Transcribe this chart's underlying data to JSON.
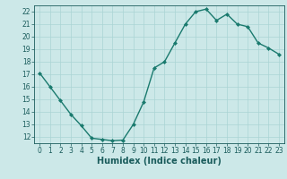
{
  "x": [
    0,
    1,
    2,
    3,
    4,
    5,
    6,
    7,
    8,
    9,
    10,
    11,
    12,
    13,
    14,
    15,
    16,
    17,
    18,
    19,
    20,
    21,
    22,
    23
  ],
  "y": [
    17.1,
    16.0,
    14.9,
    13.8,
    12.9,
    11.9,
    11.8,
    11.7,
    11.75,
    13.0,
    14.8,
    17.5,
    18.0,
    19.5,
    21.0,
    22.0,
    22.2,
    21.3,
    21.8,
    21.0,
    20.8,
    19.5,
    19.1,
    18.6
  ],
  "xlim": [
    -0.5,
    23.5
  ],
  "ylim": [
    11.5,
    22.5
  ],
  "yticks": [
    12,
    13,
    14,
    15,
    16,
    17,
    18,
    19,
    20,
    21,
    22
  ],
  "xticks": [
    0,
    1,
    2,
    3,
    4,
    5,
    6,
    7,
    8,
    9,
    10,
    11,
    12,
    13,
    14,
    15,
    16,
    17,
    18,
    19,
    20,
    21,
    22,
    23
  ],
  "xlabel": "Humidex (Indice chaleur)",
  "line_color": "#1a7a6e",
  "marker": "D",
  "marker_size": 2.0,
  "background_color": "#cce8e8",
  "grid_color": "#aad4d4",
  "text_color": "#1a5c5c",
  "line_width": 1.0,
  "tick_label_fontsize": 5.5,
  "xlabel_fontsize": 7.0
}
